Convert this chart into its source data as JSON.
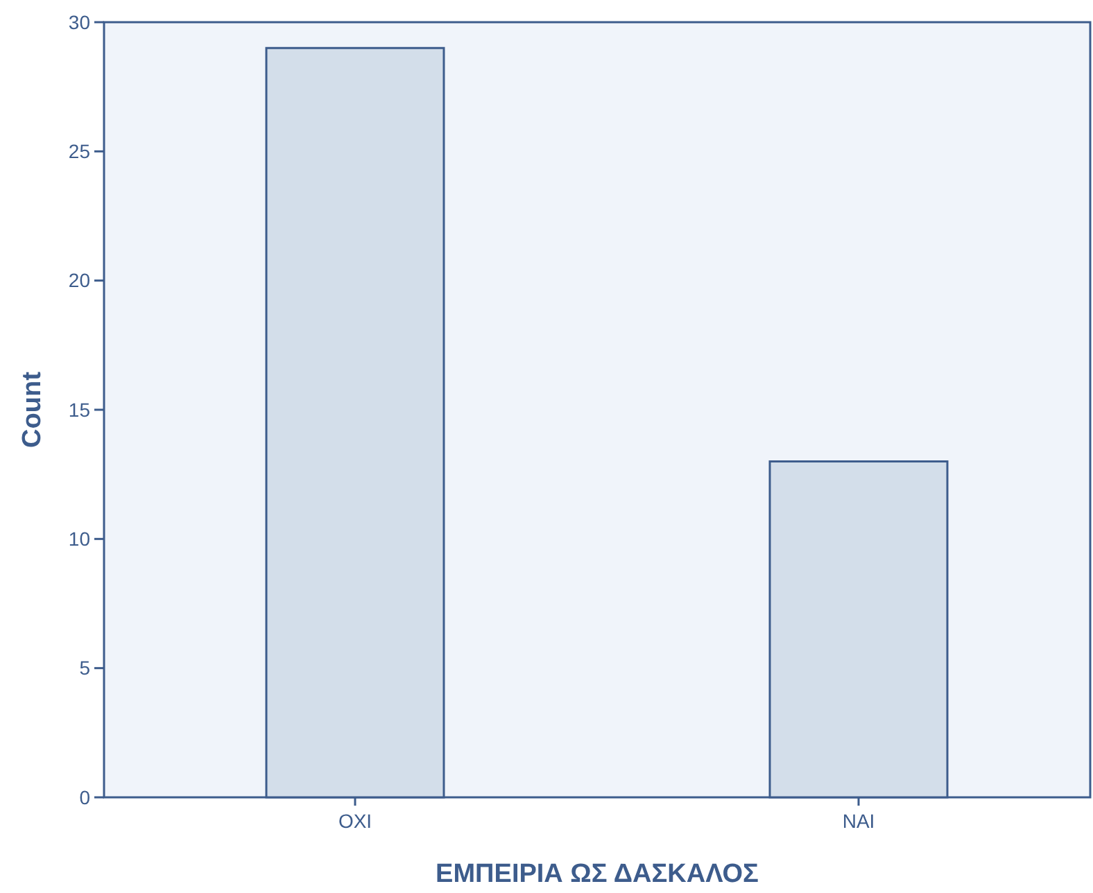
{
  "chart_data": {
    "type": "bar",
    "xlabel": "ΕΜΠΕΙΡΙΑ ΩΣ ΔΑΣΚΑΛΟΣ",
    "ylabel": "Count",
    "categories": [
      "ΟΧΙ",
      "ΝΑΙ"
    ],
    "values": [
      29,
      13
    ],
    "color": "#d3deea",
    "ylim": [
      0,
      30
    ],
    "yticks": [
      0,
      5,
      10,
      15,
      20,
      25,
      30
    ],
    "grid": false
  }
}
